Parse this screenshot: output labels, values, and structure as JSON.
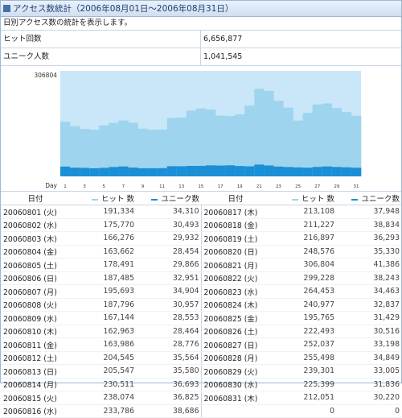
{
  "title": "アクセス数統計（2006年08月01日〜2006年08月31日）",
  "description": "日別アクセス数の統計を表示します。",
  "stats": {
    "hits_label": "ヒット回数",
    "hits_value": "6,656,877",
    "unique_label": "ユニーク人数",
    "unique_value": "1,041,545"
  },
  "colors": {
    "hits": "#9ed4ee",
    "hits_bg": "#c9e7f8",
    "unique": "#1a8fd6",
    "border": "#c9d6e6"
  },
  "chart_data": {
    "type": "bar",
    "xlabel": "Day",
    "ymax_label": "306804",
    "ylim": [
      0,
      306804
    ],
    "categories": [
      "1",
      "2",
      "3",
      "4",
      "5",
      "6",
      "7",
      "8",
      "9",
      "10",
      "11",
      "12",
      "13",
      "14",
      "15",
      "16",
      "17",
      "18",
      "19",
      "20",
      "21",
      "22",
      "23",
      "24",
      "25",
      "26",
      "27",
      "28",
      "29",
      "30",
      "31"
    ],
    "series": [
      {
        "name": "ヒット数",
        "values": [
          191334,
          175770,
          166276,
          163662,
          178491,
          187485,
          195693,
          187796,
          167144,
          162963,
          163986,
          204545,
          205547,
          230511,
          238074,
          233786,
          213108,
          211227,
          216897,
          248576,
          306804,
          299228,
          264453,
          240977,
          195765,
          222493,
          252037,
          255498,
          239301,
          225399,
          212051
        ]
      },
      {
        "name": "ユニーク数",
        "values": [
          34310,
          30493,
          29932,
          28454,
          29866,
          32951,
          34904,
          30957,
          28553,
          28464,
          28776,
          35564,
          35580,
          36693,
          36825,
          38686,
          37948,
          38834,
          36293,
          35330,
          41386,
          38243,
          34463,
          32837,
          31429,
          30516,
          33198,
          34849,
          33005,
          31836,
          30220
        ]
      }
    ]
  },
  "table": {
    "headers": {
      "date": "日付",
      "hits": "ヒット 数",
      "unique": "ユニーク数"
    },
    "left": [
      [
        "20060801 (火)",
        "191,334",
        "34,310"
      ],
      [
        "20060802 (水)",
        "175,770",
        "30,493"
      ],
      [
        "20060803 (木)",
        "166,276",
        "29,932"
      ],
      [
        "20060804 (金)",
        "163,662",
        "28,454"
      ],
      [
        "20060805 (土)",
        "178,491",
        "29,866"
      ],
      [
        "20060806 (日)",
        "187,485",
        "32,951"
      ],
      [
        "20060807 (月)",
        "195,693",
        "34,904"
      ],
      [
        "20060808 (火)",
        "187,796",
        "30,957"
      ],
      [
        "20060809 (水)",
        "167,144",
        "28,553"
      ],
      [
        "20060810 (木)",
        "162,963",
        "28,464"
      ],
      [
        "20060811 (金)",
        "163,986",
        "28,776"
      ],
      [
        "20060812 (土)",
        "204,545",
        "35,564"
      ],
      [
        "20060813 (日)",
        "205,547",
        "35,580"
      ],
      [
        "20060814 (月)",
        "230,511",
        "36,693"
      ],
      [
        "20060815 (火)",
        "238,074",
        "36,825"
      ],
      [
        "20060816 (水)",
        "233,786",
        "38,686"
      ]
    ],
    "right": [
      [
        "20060817 (木)",
        "213,108",
        "37,948"
      ],
      [
        "20060818 (金)",
        "211,227",
        "38,834"
      ],
      [
        "20060819 (土)",
        "216,897",
        "36,293"
      ],
      [
        "20060820 (日)",
        "248,576",
        "35,330"
      ],
      [
        "20060821 (月)",
        "306,804",
        "41,386"
      ],
      [
        "20060822 (火)",
        "299,228",
        "38,243"
      ],
      [
        "20060823 (水)",
        "264,453",
        "34,463"
      ],
      [
        "20060824 (木)",
        "240,977",
        "32,837"
      ],
      [
        "20060825 (金)",
        "195,765",
        "31,429"
      ],
      [
        "20060826 (土)",
        "222,493",
        "30,516"
      ],
      [
        "20060827 (日)",
        "252,037",
        "33,198"
      ],
      [
        "20060828 (月)",
        "255,498",
        "34,849"
      ],
      [
        "20060829 (火)",
        "239,301",
        "33,005"
      ],
      [
        "20060830 (水)",
        "225,399",
        "31,836"
      ],
      [
        "20060831 (木)",
        "212,051",
        "30,220"
      ],
      [
        "",
        "0",
        "0"
      ]
    ]
  }
}
